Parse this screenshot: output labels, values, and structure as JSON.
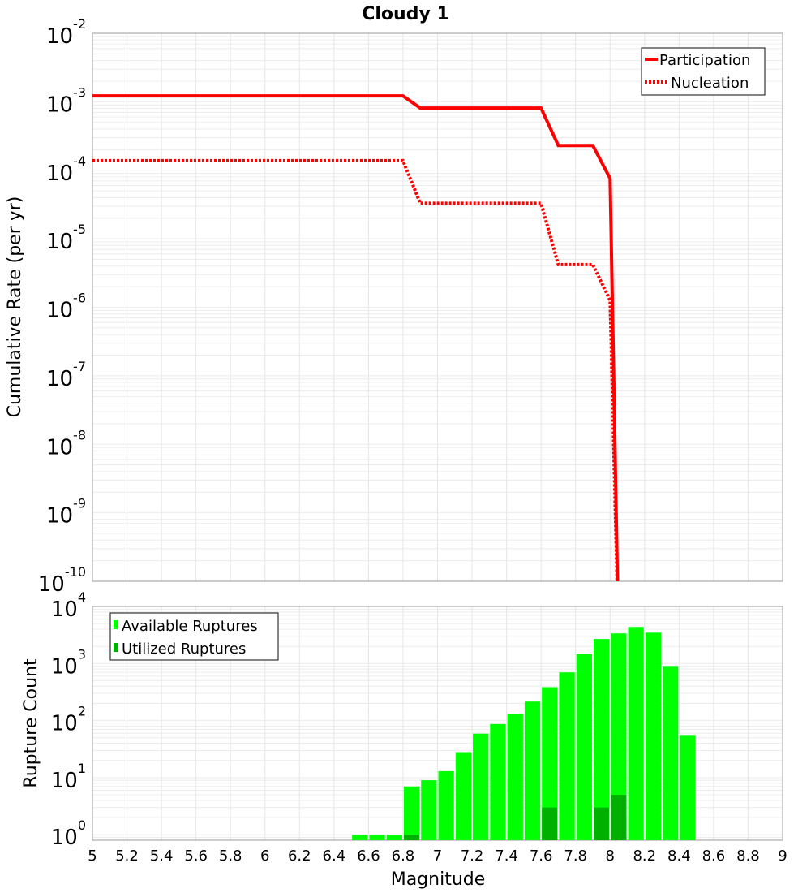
{
  "chart_data": [
    {
      "type": "line",
      "title": "Cloudy 1",
      "xlabel": "Magnitude",
      "ylabel": "Cumulative Rate (per yr)",
      "xlim": [
        5,
        9
      ],
      "ylim": [
        1e-10,
        0.01
      ],
      "yscale": "log",
      "grid": true,
      "legend_position": "top-right",
      "y_tick_exponents": [
        -2,
        -3,
        -4,
        -5,
        -6,
        -7,
        -8,
        -9,
        -10
      ],
      "series": [
        {
          "name": "Participation",
          "style": "solid",
          "color": "#ff0000",
          "x": [
            5.0,
            6.8,
            6.9,
            7.6,
            7.7,
            7.9,
            8.0,
            8.05
          ],
          "y": [
            0.00122,
            0.00122,
            0.00081,
            0.00081,
            0.00023,
            0.00023,
            7.6e-05,
            1e-11
          ]
        },
        {
          "name": "Nucleation",
          "style": "dotted",
          "color": "#ff0000",
          "x": [
            5.0,
            6.8,
            6.9,
            7.6,
            7.7,
            7.9,
            8.0,
            8.05
          ],
          "y": [
            0.000138,
            0.000138,
            3.3e-05,
            3.3e-05,
            4.2e-06,
            4.2e-06,
            1.26e-06,
            1e-11
          ]
        }
      ]
    },
    {
      "type": "bar",
      "xlabel": "Magnitude",
      "ylabel": "Rupture Count",
      "xlim": [
        5,
        9
      ],
      "ylim": [
        0.8,
        10000
      ],
      "yscale": "log",
      "grid": true,
      "legend_position": "top-left",
      "bin_width": 0.1,
      "x_tick_labels": [
        "5",
        "5.2",
        "5.4",
        "5.6",
        "5.8",
        "6",
        "6.2",
        "6.4",
        "6.6",
        "6.8",
        "7",
        "7.2",
        "7.4",
        "7.6",
        "7.8",
        "8",
        "8.2",
        "8.4",
        "8.6",
        "8.8",
        "9"
      ],
      "y_tick_exponents": [
        4,
        3,
        2,
        1,
        0
      ],
      "bin_starts": [
        6.5,
        6.6,
        6.7,
        6.8,
        6.9,
        7.0,
        7.1,
        7.2,
        7.3,
        7.4,
        7.5,
        7.6,
        7.7,
        7.8,
        7.9,
        8.0,
        8.1,
        8.2,
        8.3,
        8.4
      ],
      "series": [
        {
          "name": "Available Ruptures",
          "color": "#00ff00",
          "values": [
            1,
            1,
            1,
            7,
            9,
            13,
            28,
            59,
            87,
            130,
            215,
            385,
            700,
            1450,
            2690,
            3370,
            4370,
            3470,
            905,
            56
          ]
        },
        {
          "name": "Utilized Ruptures",
          "color": "#00b000",
          "values": [
            0,
            0,
            0,
            1,
            0,
            0,
            0,
            0,
            0,
            0,
            0,
            3,
            0,
            0,
            3,
            5,
            0,
            0,
            0,
            0
          ]
        }
      ]
    }
  ]
}
